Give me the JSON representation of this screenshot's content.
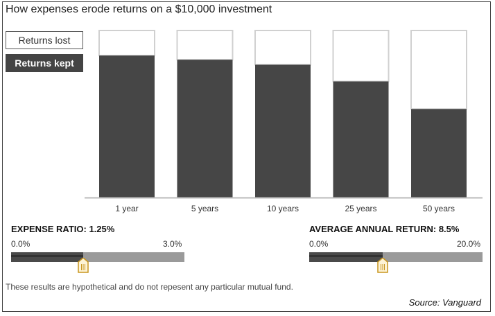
{
  "title": "How expenses erode returns on a $10,000 investment",
  "legend": {
    "lost_label": "Returns lost",
    "kept_label": "Returns kept"
  },
  "colors": {
    "kept": "#464646",
    "lost": "#ffffff",
    "outline": "#d0d0d0",
    "track": "#9a9a9a",
    "handle": "#c8961e"
  },
  "chart_data": {
    "type": "bar",
    "stacked": true,
    "categories": [
      "1 year",
      "5 years",
      "10 years",
      "25 years",
      "50 years"
    ],
    "series": [
      {
        "name": "Returns kept",
        "values": [
          0.85,
          0.825,
          0.795,
          0.695,
          0.53
        ]
      },
      {
        "name": "Returns lost",
        "values": [
          0.15,
          0.175,
          0.205,
          0.305,
          0.47
        ]
      }
    ],
    "ylim": [
      0,
      1
    ],
    "legend_position": "top-left",
    "grid": false
  },
  "sliders": {
    "expense": {
      "title": "EXPENSE RATIO: 1.25%",
      "min_label": "0.0%",
      "max_label": "3.0%",
      "value": 1.25,
      "min": 0,
      "max": 3
    },
    "return": {
      "title": "AVERAGE ANNUAL RETURN: 8.5%",
      "min_label": "0.0%",
      "max_label": "20.0%",
      "value": 8.5,
      "min": 0,
      "max": 20
    }
  },
  "footnote": "These results are hypothetical and do not repesent any particular mutual fund.",
  "source": "Source: Vanguard"
}
